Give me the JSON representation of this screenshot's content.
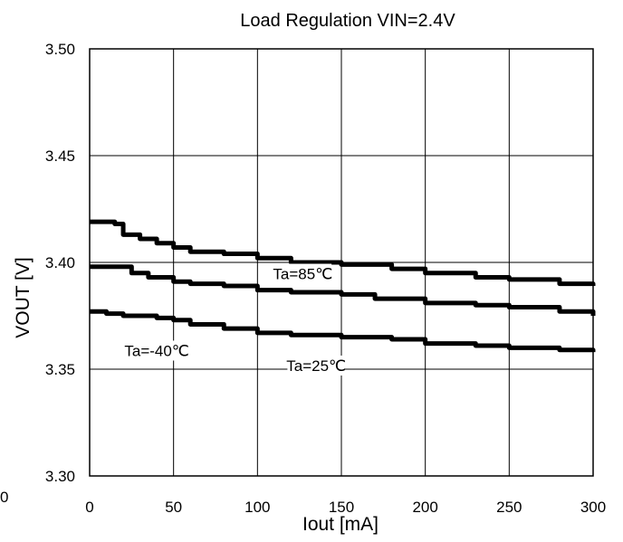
{
  "chart_data": {
    "type": "line",
    "title": "Load Regulation VIN=2.4V",
    "xlabel": "Iout [mA]",
    "ylabel": "VOUT [V]",
    "xlim": [
      0,
      300
    ],
    "ylim": [
      3.3,
      3.5
    ],
    "x_ticks": [
      "0",
      "50",
      "100",
      "150",
      "200",
      "250",
      "300"
    ],
    "y_ticks": [
      "3.30",
      "3.35",
      "3.40",
      "3.45",
      "3.50"
    ],
    "stray_label": "0",
    "grid": true,
    "series": [
      {
        "name": "Ta=85℃",
        "color": "#000000",
        "x": [
          0,
          15,
          20,
          30,
          40,
          50,
          60,
          80,
          100,
          120,
          150,
          180,
          200,
          230,
          250,
          280,
          300
        ],
        "y": [
          3.419,
          3.418,
          3.413,
          3.411,
          3.409,
          3.407,
          3.405,
          3.404,
          3.402,
          3.4,
          3.399,
          3.397,
          3.395,
          3.393,
          3.392,
          3.39,
          3.389
        ]
      },
      {
        "name": "Ta=25℃",
        "color": "#000000",
        "x": [
          0,
          15,
          25,
          35,
          50,
          60,
          80,
          100,
          120,
          150,
          170,
          200,
          230,
          250,
          280,
          300
        ],
        "y": [
          3.398,
          3.398,
          3.395,
          3.393,
          3.391,
          3.39,
          3.389,
          3.387,
          3.386,
          3.385,
          3.383,
          3.381,
          3.38,
          3.379,
          3.377,
          3.375
        ]
      },
      {
        "name": "Ta=-40℃",
        "color": "#000000",
        "x": [
          0,
          10,
          20,
          40,
          50,
          60,
          80,
          100,
          120,
          150,
          180,
          200,
          230,
          250,
          280,
          300
        ],
        "y": [
          3.377,
          3.376,
          3.375,
          3.374,
          3.373,
          3.371,
          3.369,
          3.367,
          3.366,
          3.365,
          3.364,
          3.362,
          3.361,
          3.36,
          3.359,
          3.358
        ]
      }
    ],
    "annotations": [
      {
        "text": "Ta=85℃",
        "x": 127,
        "y": 3.393
      },
      {
        "text": "Ta=-40℃",
        "x": 40,
        "y": 3.357
      },
      {
        "text": "Ta=25℃",
        "x": 135,
        "y": 3.35
      }
    ]
  }
}
